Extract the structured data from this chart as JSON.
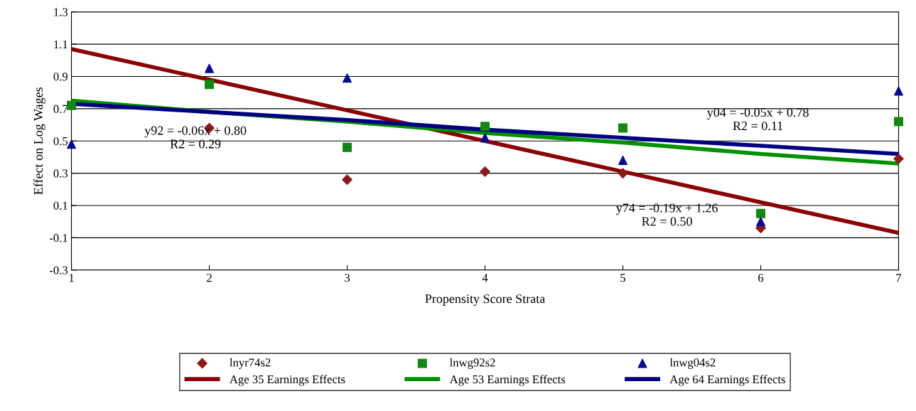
{
  "chart_data": {
    "type": "scatter",
    "xlabel": "Propensity Score Strata",
    "ylabel": "Effect on Log Wages",
    "x": [
      1,
      2,
      3,
      4,
      5,
      6,
      7
    ],
    "xlim": [
      1,
      7
    ],
    "xticks": [
      1,
      2,
      3,
      4,
      5,
      6,
      7
    ],
    "ylim": [
      -0.3,
      1.3
    ],
    "yticks": [
      -0.3,
      -0.1,
      0.1,
      0.3,
      0.5,
      0.7,
      0.9,
      1.1,
      1.3
    ],
    "grid": "y",
    "legend": "bottom",
    "series": [
      {
        "name": "lnyr74s2",
        "marker": "diamond",
        "color": "#8b1a1a",
        "values": [
          null,
          0.58,
          0.26,
          0.31,
          0.3,
          -0.04,
          0.39
        ]
      },
      {
        "name": "lnwg92s2",
        "marker": "square",
        "color": "#158515",
        "values": [
          0.72,
          0.85,
          0.46,
          0.59,
          0.58,
          0.05,
          0.62
        ]
      },
      {
        "name": "lnwg04s2",
        "marker": "triangle",
        "color": "#0a0a8f",
        "values": [
          0.48,
          0.95,
          0.89,
          0.52,
          0.38,
          0.0,
          0.81
        ]
      },
      {
        "name": "Age 35 Earnings Effects",
        "type": "line",
        "marker": "none",
        "color": "#8b0000",
        "values": [
          1.07,
          0.88,
          0.69,
          0.5,
          0.31,
          0.12,
          -0.07
        ]
      },
      {
        "name": "Age 53 Earnings Effects",
        "type": "line",
        "marker": "none",
        "color": "#009000",
        "values": [
          0.75,
          0.68,
          0.62,
          0.55,
          0.49,
          0.42,
          0.36
        ]
      },
      {
        "name": "Age 64 Earnings Effects",
        "type": "line",
        "marker": "none",
        "color": "#000080",
        "values": [
          0.73,
          0.68,
          0.63,
          0.57,
          0.52,
          0.47,
          0.42
        ]
      }
    ],
    "annotations": [
      "y92 = -0.06x + 0.80\nR2 = 0.29",
      "y04 = -0.05x + 0.78\nR2 = 0.11",
      "y74 = -0.19x + 1.26\nR2 = 0.50"
    ]
  }
}
